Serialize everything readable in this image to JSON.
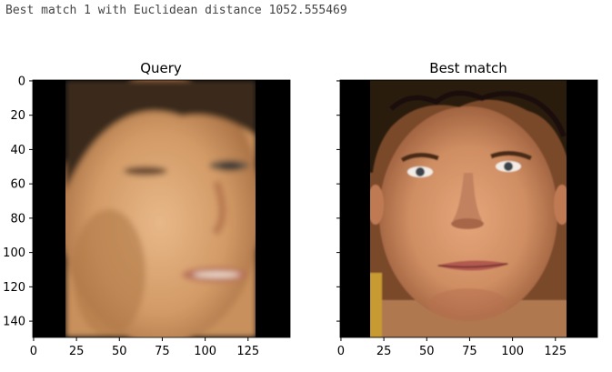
{
  "console": {
    "output_line": "Best match 1 with Euclidean distance 1052.555469"
  },
  "figure": {
    "left_panel": {
      "title": "Query",
      "image": {
        "face_x_range": [
          19,
          131
        ],
        "hair_color": "#3a2a1c",
        "skin_color": "#d8a070",
        "background_color": "#000000",
        "blur": true
      }
    },
    "right_panel": {
      "title": "Best match",
      "image": {
        "face_x_range": [
          17,
          132
        ],
        "hair_color": "#2a1a10",
        "skin_color": "#d49468",
        "background_color": "#000000",
        "blur": false
      }
    },
    "x_ticks": [
      0,
      25,
      50,
      75,
      100,
      125
    ],
    "y_ticks": [
      0,
      20,
      40,
      60,
      80,
      100,
      120,
      140
    ],
    "x_tick_labels": [
      "0",
      "25",
      "50",
      "75",
      "100",
      "125"
    ],
    "y_tick_labels": [
      "0",
      "20",
      "40",
      "60",
      "80",
      "100",
      "120",
      "140"
    ],
    "image_width": 150,
    "image_height": 150,
    "sharey": true
  }
}
